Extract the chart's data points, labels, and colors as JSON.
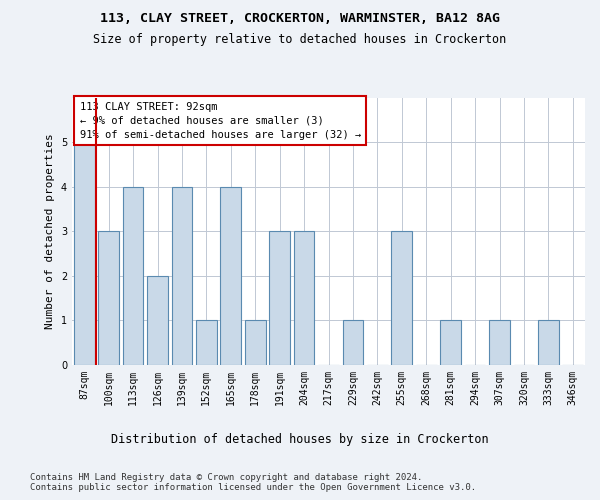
{
  "title1": "113, CLAY STREET, CROCKERTON, WARMINSTER, BA12 8AG",
  "title2": "Size of property relative to detached houses in Crockerton",
  "xlabel": "Distribution of detached houses by size in Crockerton",
  "ylabel": "Number of detached properties",
  "bins": [
    "87sqm",
    "100sqm",
    "113sqm",
    "126sqm",
    "139sqm",
    "152sqm",
    "165sqm",
    "178sqm",
    "191sqm",
    "204sqm",
    "217sqm",
    "229sqm",
    "242sqm",
    "255sqm",
    "268sqm",
    "281sqm",
    "294sqm",
    "307sqm",
    "320sqm",
    "333sqm",
    "346sqm"
  ],
  "values": [
    5,
    3,
    4,
    2,
    4,
    1,
    4,
    1,
    3,
    3,
    0,
    1,
    0,
    3,
    0,
    1,
    0,
    1,
    0,
    1,
    0
  ],
  "bar_color": "#c9d9e8",
  "bar_edge_color": "#5a8ab0",
  "vline_color": "#cc0000",
  "annotation_text": "113 CLAY STREET: 92sqm\n← 9% of detached houses are smaller (3)\n91% of semi-detached houses are larger (32) →",
  "annotation_box_color": "white",
  "annotation_box_edge_color": "#cc0000",
  "ylim": [
    0,
    6
  ],
  "yticks": [
    0,
    1,
    2,
    3,
    4,
    5
  ],
  "footer_text": "Contains HM Land Registry data © Crown copyright and database right 2024.\nContains public sector information licensed under the Open Government Licence v3.0.",
  "bg_color": "#eef2f7",
  "plot_bg_color": "white",
  "grid_color": "#c0c8d4",
  "title1_fontsize": 9.5,
  "title2_fontsize": 8.5,
  "xlabel_fontsize": 8.5,
  "ylabel_fontsize": 8,
  "tick_fontsize": 7,
  "annotation_fontsize": 7.5,
  "footer_fontsize": 6.5
}
